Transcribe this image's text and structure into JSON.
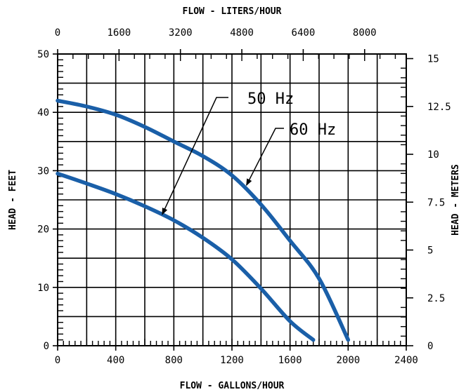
{
  "chart_data": {
    "type": "line",
    "title": "",
    "xlabel": "FLOW - GALLONS/HOUR",
    "x2label": "FLOW - LITERS/HOUR",
    "ylabel": "HEAD - FEET",
    "y2label": "HEAD - METERS",
    "xlim": [
      0,
      2400
    ],
    "ylim": [
      0,
      50
    ],
    "x2lim": [
      0,
      9085
    ],
    "y2lim": [
      0,
      15.24
    ],
    "x_ticks": [
      "0",
      "400",
      "800",
      "1200",
      "1600",
      "2000",
      "2400"
    ],
    "y_ticks": [
      "0",
      "10",
      "20",
      "30",
      "40",
      "50"
    ],
    "x2_ticks": [
      "0",
      "1600",
      "3200",
      "4800",
      "6400",
      "8000"
    ],
    "y2_ticks": [
      "0",
      "2.5",
      "5",
      "7.5",
      "10",
      "12.5",
      "15"
    ],
    "grid": true,
    "line_color": "#1a5fa8",
    "series": [
      {
        "name": "50 Hz",
        "x": [
          0,
          200,
          400,
          600,
          800,
          1000,
          1200,
          1400,
          1600,
          1760
        ],
        "y": [
          29.5,
          27.8,
          26,
          23.9,
          21.5,
          18.5,
          14.8,
          9.8,
          4.2,
          1.0
        ]
      },
      {
        "name": "60 Hz",
        "x": [
          0,
          200,
          400,
          600,
          800,
          1000,
          1200,
          1400,
          1600,
          1800,
          2000
        ],
        "y": [
          42,
          41,
          39.6,
          37.5,
          35,
          32.5,
          29.2,
          24.2,
          18,
          11.5,
          1.0
        ]
      }
    ],
    "annotations": [
      {
        "text": "50 Hz",
        "series": "50 Hz",
        "at_x": 720,
        "at_y": 22.5
      },
      {
        "text": "60 Hz",
        "series": "60 Hz",
        "at_x": 1300,
        "at_y": 27.5
      }
    ]
  }
}
